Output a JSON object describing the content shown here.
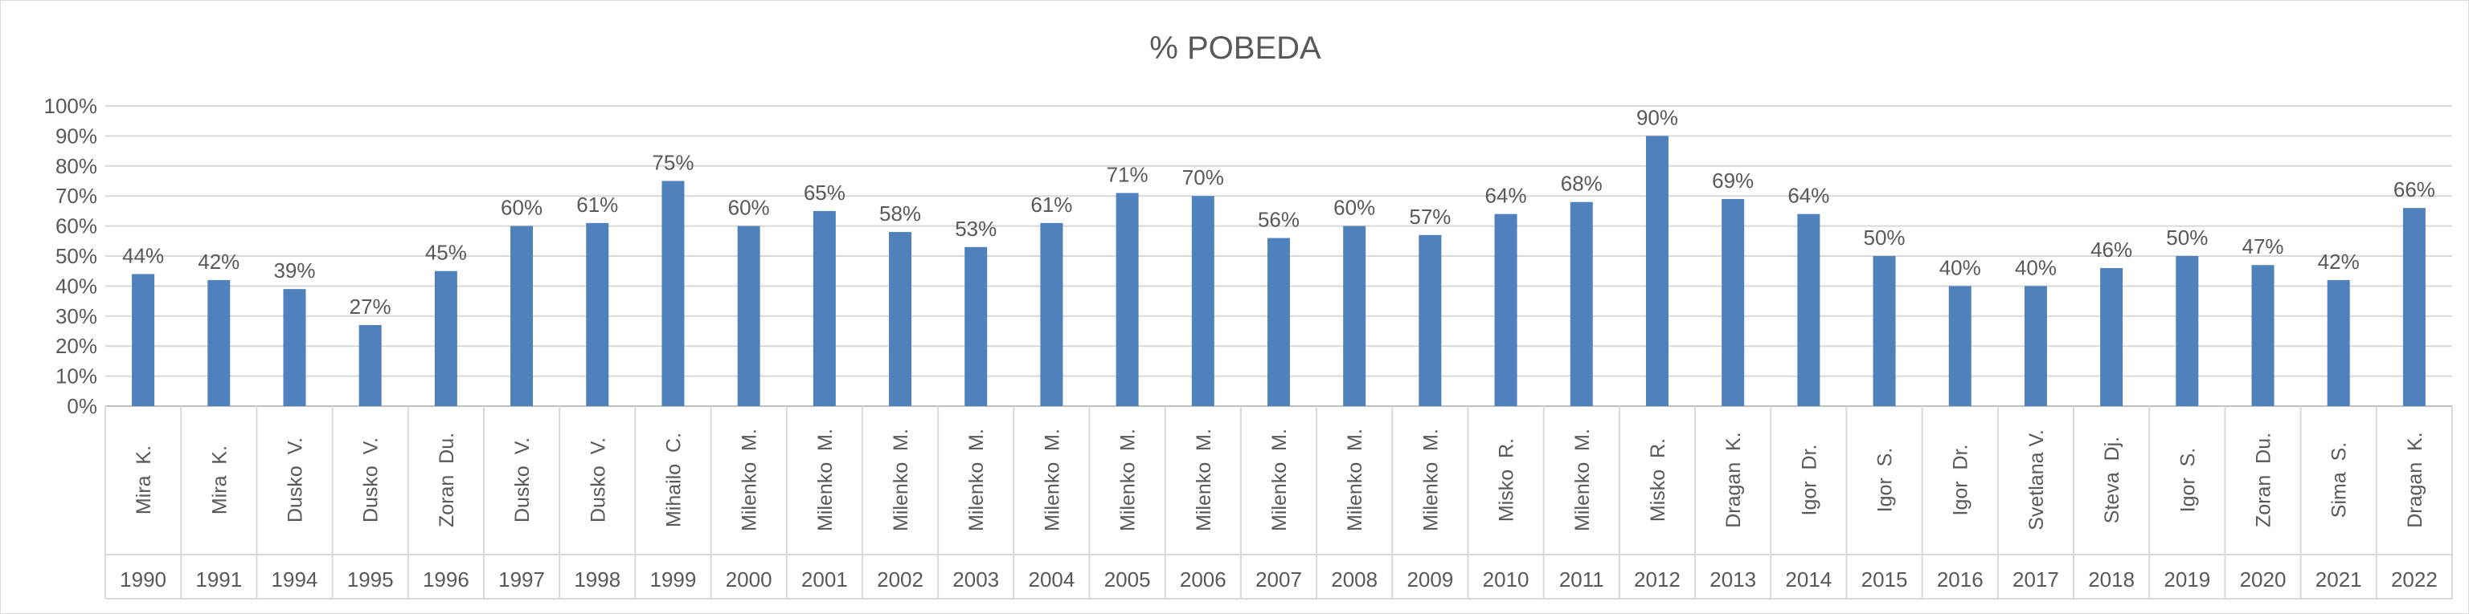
{
  "chart_data": {
    "type": "bar",
    "title": "% POBEDA",
    "xlabel": "",
    "ylabel": "",
    "ylim": [
      0,
      100
    ],
    "yticks": [
      "0%",
      "10%",
      "20%",
      "30%",
      "40%",
      "50%",
      "60%",
      "70%",
      "80%",
      "90%",
      "100%"
    ],
    "grid": true,
    "legend": "none",
    "bar_color": "#4f81bd",
    "categories": [
      {
        "name": "Mira  K.",
        "year": "1990",
        "label": "44%"
      },
      {
        "name": "Mira  K.",
        "year": "1991",
        "label": "42%"
      },
      {
        "name": "Dusko  V.",
        "year": "1994",
        "label": "39%"
      },
      {
        "name": "Dusko  V.",
        "year": "1995",
        "label": "27%"
      },
      {
        "name": "Zoran  Du.",
        "year": "1996",
        "label": "45%"
      },
      {
        "name": "Dusko  V.",
        "year": "1997",
        "label": "60%"
      },
      {
        "name": "Dusko  V.",
        "year": "1998",
        "label": "61%"
      },
      {
        "name": "Mihailo  C.",
        "year": "1999",
        "label": "75%"
      },
      {
        "name": "Milenko  M.",
        "year": "2000",
        "label": "60%"
      },
      {
        "name": "Milenko  M.",
        "year": "2001",
        "label": "65%"
      },
      {
        "name": "Milenko  M.",
        "year": "2002",
        "label": "58%"
      },
      {
        "name": "Milenko  M.",
        "year": "2003",
        "label": "53%"
      },
      {
        "name": "Milenko  M.",
        "year": "2004",
        "label": "61%"
      },
      {
        "name": "Milenko  M.",
        "year": "2005",
        "label": "71%"
      },
      {
        "name": "Milenko  M.",
        "year": "2006",
        "label": "70%"
      },
      {
        "name": "Milenko  M.",
        "year": "2007",
        "label": "56%"
      },
      {
        "name": "Milenko  M.",
        "year": "2008",
        "label": "60%"
      },
      {
        "name": "Milenko  M.",
        "year": "2009",
        "label": "57%"
      },
      {
        "name": "Misko  R.",
        "year": "2010",
        "label": "64%"
      },
      {
        "name": "Milenko  M.",
        "year": "2011",
        "label": "68%"
      },
      {
        "name": "Misko  R.",
        "year": "2012",
        "label": "90%"
      },
      {
        "name": "Dragan  K.",
        "year": "2013",
        "label": "69%"
      },
      {
        "name": "Igor  Dr.",
        "year": "2014",
        "label": "64%"
      },
      {
        "name": "Igor  S.",
        "year": "2015",
        "label": "50%"
      },
      {
        "name": "Igor  Dr.",
        "year": "2016",
        "label": "40%"
      },
      {
        "name": "Svetlana V.",
        "year": "2017",
        "label": "40%"
      },
      {
        "name": "Steva  Dj.",
        "year": "2018",
        "label": "46%"
      },
      {
        "name": "Igor  S.",
        "year": "2019",
        "label": "50%"
      },
      {
        "name": "Zoran  Du.",
        "year": "2020",
        "label": "47%"
      },
      {
        "name": "Sima  S.",
        "year": "2021",
        "label": "42%"
      },
      {
        "name": "Dragan  K.",
        "year": "2022",
        "label": "66%"
      }
    ],
    "values": [
      44,
      42,
      39,
      27,
      45,
      60,
      61,
      75,
      60,
      65,
      58,
      53,
      61,
      71,
      70,
      56,
      60,
      57,
      64,
      68,
      90,
      69,
      64,
      50,
      40,
      40,
      46,
      50,
      47,
      42,
      66
    ]
  }
}
